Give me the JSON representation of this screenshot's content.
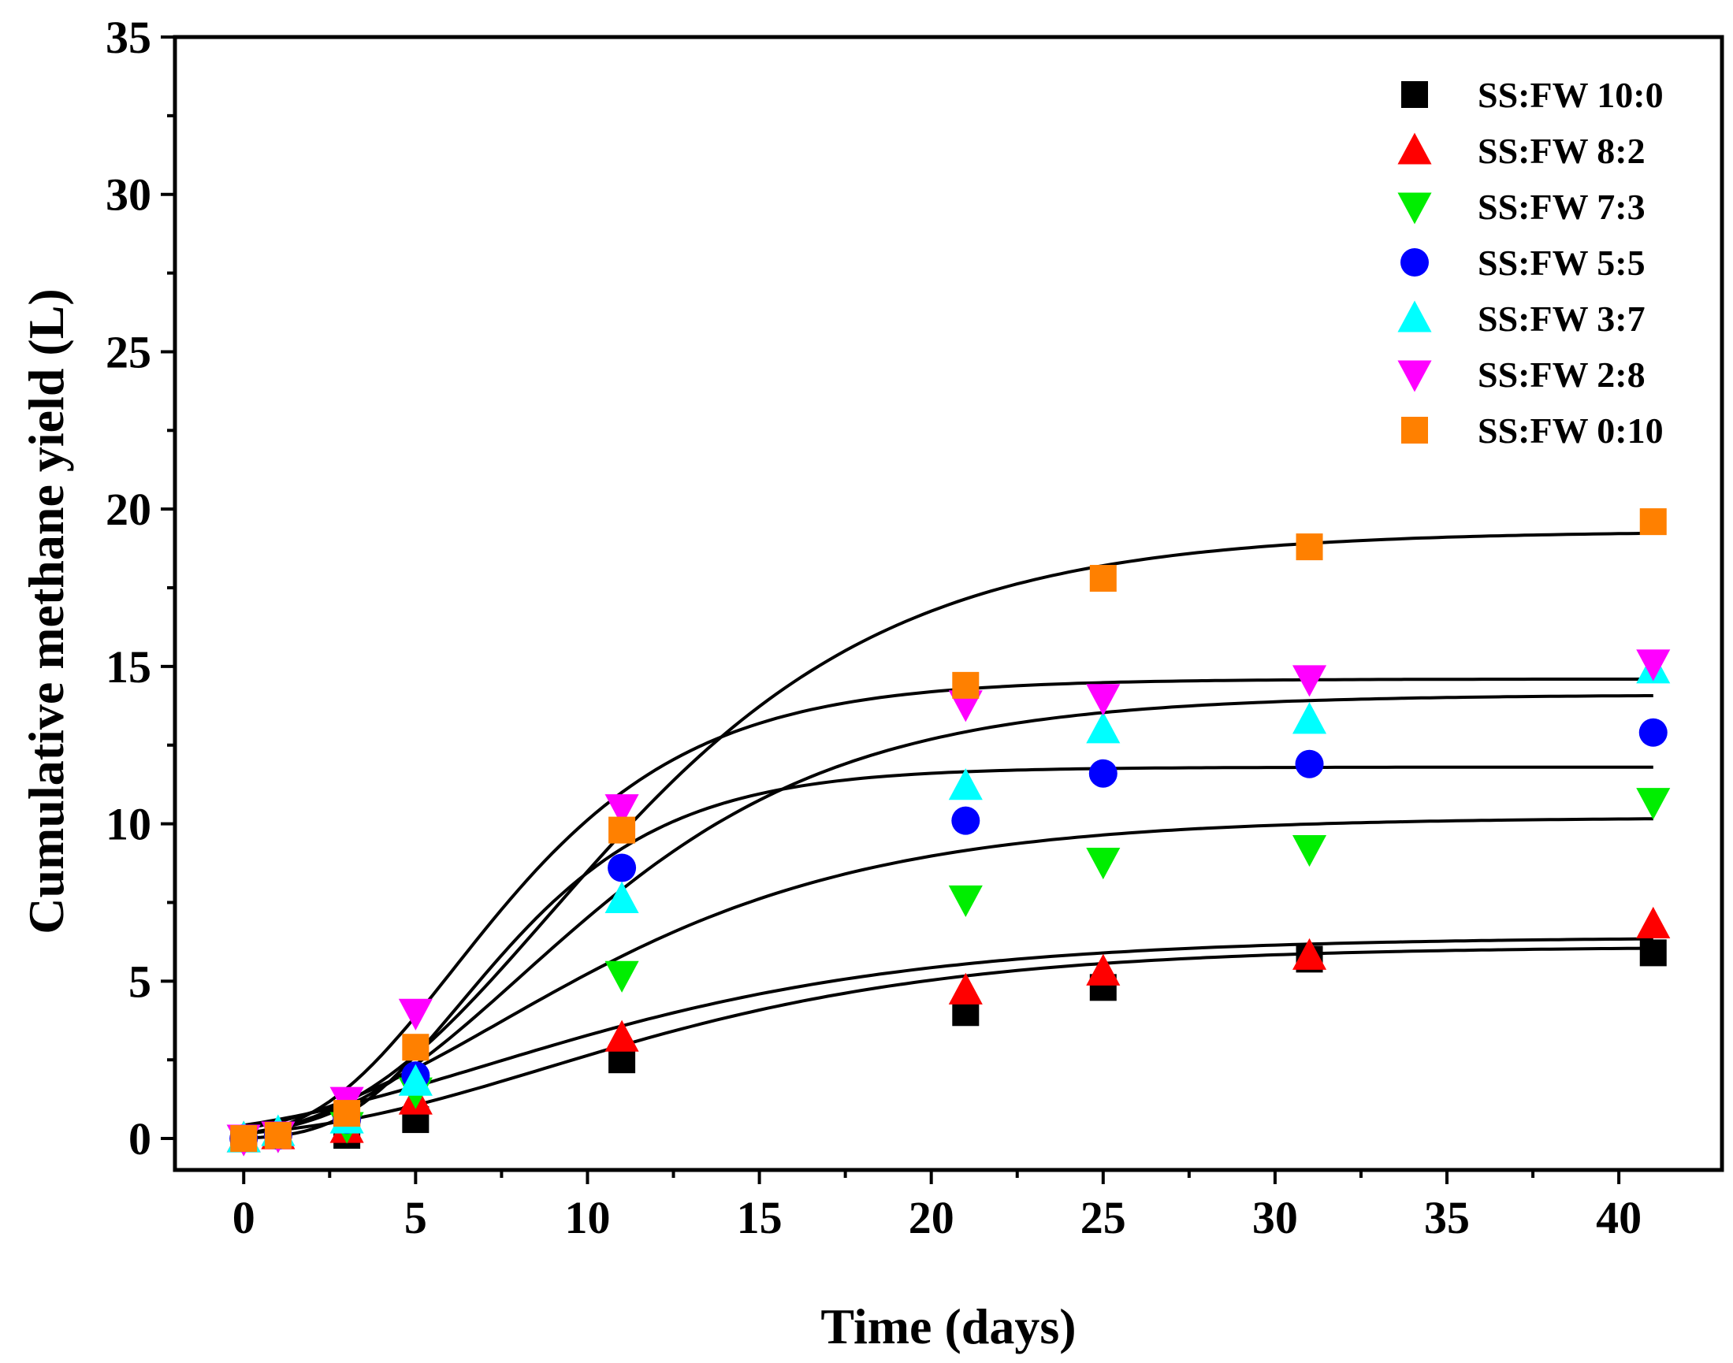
{
  "chart_data": {
    "type": "scatter",
    "title": "",
    "xlabel": "Time (days)",
    "ylabel": "Cumulative methane yield (L)",
    "xlim": [
      -2,
      43
    ],
    "ylim": [
      -1,
      35
    ],
    "xticks": [
      0,
      5,
      10,
      15,
      20,
      25,
      30,
      35,
      40
    ],
    "yticks": [
      0,
      5,
      10,
      15,
      20,
      25,
      30,
      35
    ],
    "x": [
      0,
      1,
      3,
      5,
      11,
      21,
      25,
      31,
      41
    ],
    "legend_position": "top-right",
    "fit_line_color": "#000000",
    "series": [
      {
        "name": "SS:FW 10:0",
        "marker": "square",
        "color": "#000000",
        "values": [
          0,
          0.1,
          0.1,
          0.6,
          2.5,
          4.0,
          4.8,
          5.7,
          5.9
        ],
        "fit": {
          "P": 6.1,
          "Rm": 0.33,
          "lambda": 2.0
        }
      },
      {
        "name": "SS:FW 8:2",
        "marker": "triangle-up",
        "color": "#ff0000",
        "values": [
          0,
          0.1,
          0.3,
          1.2,
          3.2,
          4.7,
          5.3,
          5.8,
          6.8
        ],
        "fit": {
          "P": 6.4,
          "Rm": 0.33,
          "lambda": 0.0
        }
      },
      {
        "name": "SS:FW 7:3",
        "marker": "triangle-down",
        "color": "#00ee00",
        "values": [
          0,
          0.1,
          0.4,
          1.5,
          5.2,
          7.6,
          8.8,
          9.2,
          10.7
        ],
        "fit": {
          "P": 10.2,
          "Rm": 0.62,
          "lambda": 1.5
        }
      },
      {
        "name": "SS:FW 5:5",
        "marker": "circle",
        "color": "#0000ff",
        "values": [
          0,
          0.1,
          0.6,
          2.0,
          8.6,
          10.1,
          11.6,
          11.9,
          12.9
        ],
        "fit": {
          "P": 11.8,
          "Rm": 1.3,
          "lambda": 3.0
        }
      },
      {
        "name": "SS:FW 3:7",
        "marker": "triangle-up",
        "color": "#00ffff",
        "values": [
          0,
          0.2,
          0.6,
          1.8,
          7.6,
          11.2,
          13.0,
          13.3,
          14.9
        ],
        "fit": {
          "P": 14.1,
          "Rm": 0.98,
          "lambda": 2.8
        }
      },
      {
        "name": "SS:FW 2:8",
        "marker": "triangle-down",
        "color": "#ff00ff",
        "values": [
          0,
          0.1,
          1.2,
          4.0,
          10.5,
          13.8,
          14.0,
          14.6,
          15.1
        ],
        "fit": {
          "P": 14.6,
          "Rm": 1.38,
          "lambda": 2.2
        }
      },
      {
        "name": "SS:FW 0:10",
        "marker": "square",
        "color": "#ff8000",
        "values": [
          0,
          0.1,
          0.8,
          2.9,
          9.8,
          14.4,
          17.8,
          18.8,
          19.6
        ],
        "fit": {
          "P": 19.3,
          "Rm": 1.25,
          "lambda": 3.2
        }
      }
    ]
  }
}
